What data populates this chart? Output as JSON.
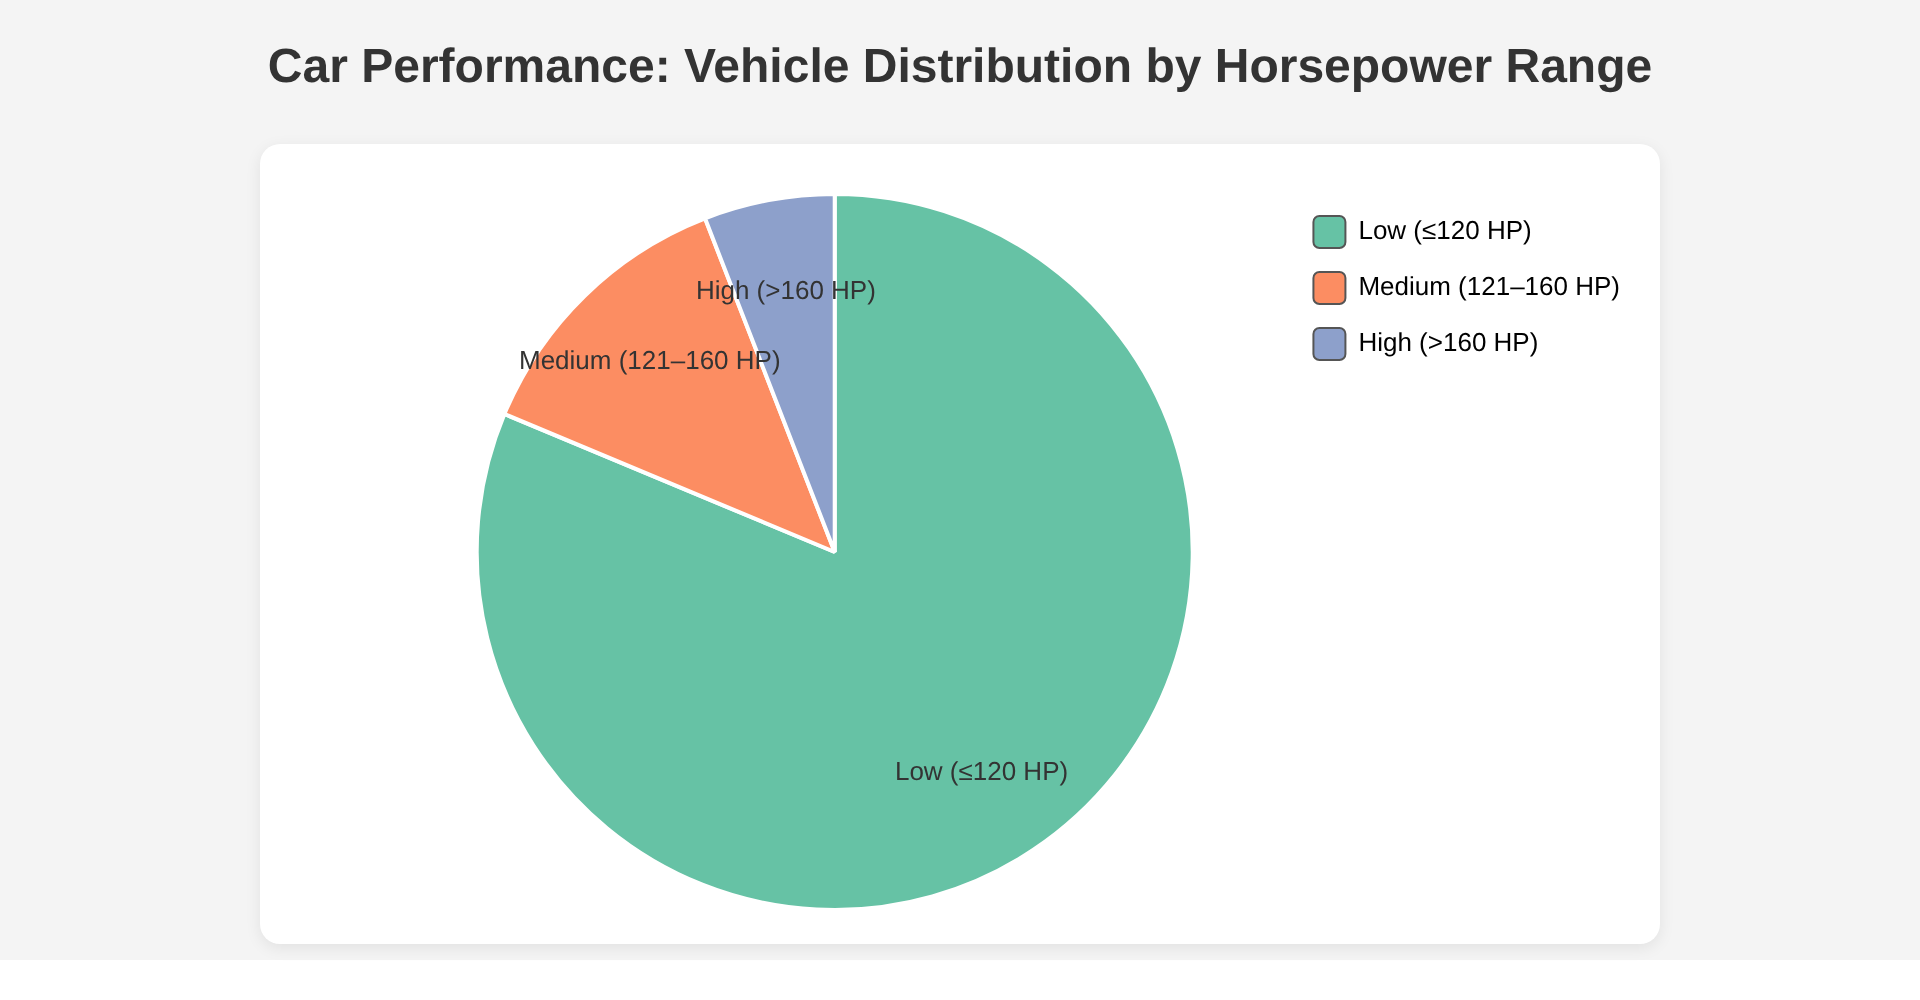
{
  "chart_data": {
    "type": "pie",
    "title": "Car Performance: Vehicle Distribution by Horsepower Range",
    "categories": [
      "Low (≤120 HP)",
      "Medium (121–160 HP)",
      "High (>160 HP)"
    ],
    "values": [
      81.3,
      12.8,
      5.9
    ],
    "colors": [
      "#66c2a5",
      "#fc8d62",
      "#8da0cb"
    ],
    "legend": "top right"
  }
}
